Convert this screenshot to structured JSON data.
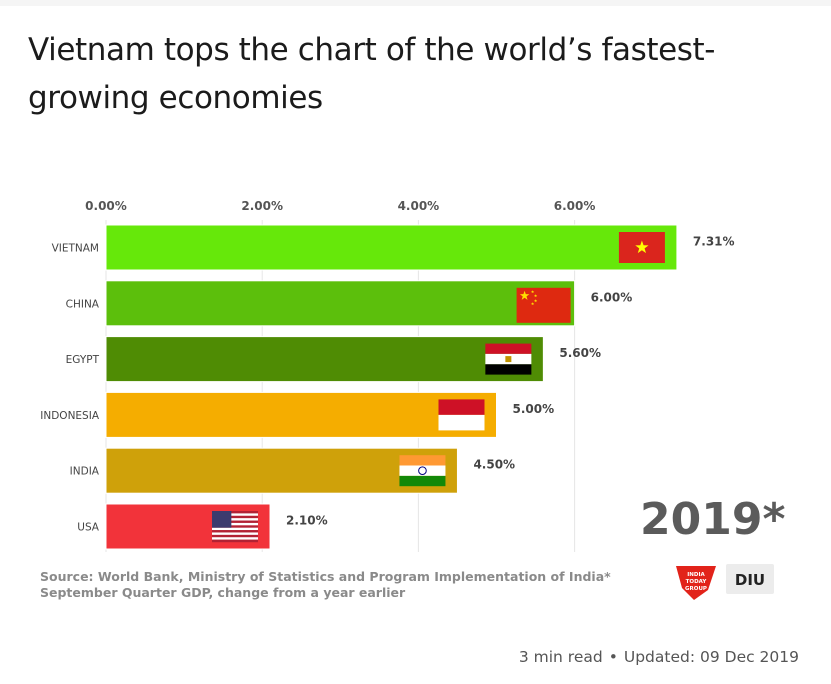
{
  "article": {
    "headline": "Vietnam tops the chart of the world’s fastest-growing economies",
    "read_time": "3 min read",
    "updated": "Updated: 09 Dec 2019"
  },
  "figure": {
    "source_line1": "Source: World Bank, Ministry of Statistics and Program Implementation of India*",
    "source_line2": "September Quarter GDP, change from a year earlier",
    "year_stamp": "2019*",
    "logo_left": "INDIA TODAY GROUP",
    "logo_right": "DIU"
  },
  "chart_data": {
    "type": "bar",
    "orientation": "horizontal",
    "title": "",
    "xlabel": "",
    "ylabel": "",
    "xlim": [
      0,
      7.31
    ],
    "ticks": [
      0,
      2,
      4,
      6
    ],
    "tick_labels": [
      "0.00%",
      "2.00%",
      "4.00%",
      "6.00%"
    ],
    "grid": true,
    "categories": [
      "VIETNAM",
      "CHINA",
      "EGYPT",
      "INDONESIA",
      "INDIA",
      "USA"
    ],
    "values": [
      7.31,
      6.0,
      5.6,
      5.0,
      4.5,
      2.1
    ],
    "value_labels": [
      "7.31%",
      "6.00%",
      "5.60%",
      "5.00%",
      "4.50%",
      "2.10%"
    ],
    "colors": [
      "#66e80a",
      "#5cbf0c",
      "#4f8c04",
      "#f5ad00",
      "#cfa10a",
      "#f2333a"
    ],
    "flags": [
      "vietnam-flag",
      "china-flag",
      "egypt-flag",
      "indonesia-flag",
      "india-flag",
      "usa-flag"
    ]
  }
}
